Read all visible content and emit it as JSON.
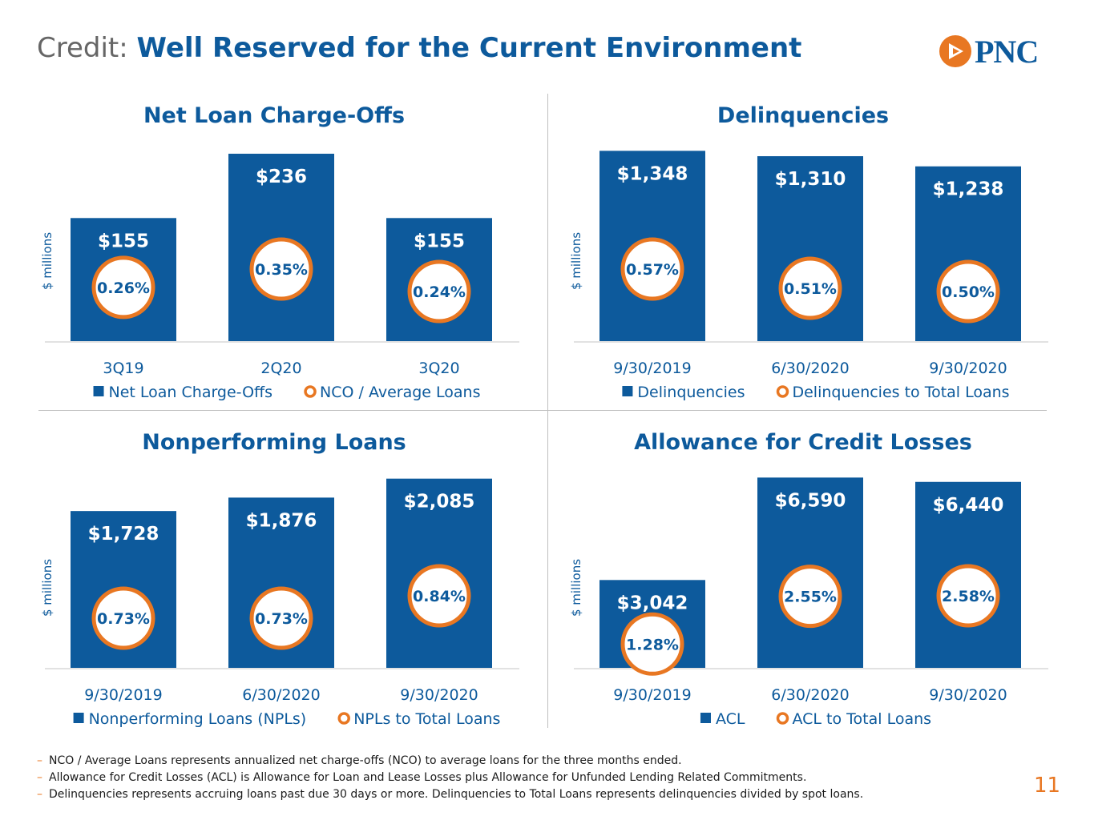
{
  "header": {
    "title_prefix": "Credit:",
    "title_main": "Well Reserved for the Current Environment",
    "logo_text": "PNC"
  },
  "colors": {
    "bar": "#0d5a9c",
    "ring": "#e87722",
    "axis_label": "#0d5a9c",
    "tick": "#0d5a9c"
  },
  "chart_data": [
    {
      "type": "bar",
      "title": "Net Loan Charge-Offs",
      "ylabel": "$ millions",
      "categories": [
        "3Q19",
        "2Q20",
        "3Q20"
      ],
      "values": [
        155,
        236,
        155
      ],
      "value_labels": [
        "$155",
        "$236",
        "$155"
      ],
      "ratio_values": [
        0.26,
        0.35,
        0.24
      ],
      "ratio_labels": [
        "0.26%",
        "0.35%",
        "0.24%"
      ],
      "ylim": [
        0,
        240
      ],
      "legend": {
        "bar": "Net Loan Charge-Offs",
        "ring": "NCO / Average Loans"
      }
    },
    {
      "type": "bar",
      "title": "Delinquencies",
      "ylabel": "$ millions",
      "categories": [
        "9/30/2019",
        "6/30/2020",
        "9/30/2020"
      ],
      "values": [
        1348,
        1310,
        1238
      ],
      "value_labels": [
        "$1,348",
        "$1,310",
        "$1,238"
      ],
      "ratio_values": [
        0.57,
        0.51,
        0.5
      ],
      "ratio_labels": [
        "0.57%",
        "0.51%",
        "0.50%"
      ],
      "ylim": [
        0,
        1350
      ],
      "legend": {
        "bar": "Delinquencies",
        "ring": "Delinquencies to Total Loans"
      }
    },
    {
      "type": "bar",
      "title": "Nonperforming Loans",
      "ylabel": "$ millions",
      "categories": [
        "9/30/2019",
        "6/30/2020",
        "9/30/2020"
      ],
      "values": [
        1728,
        1876,
        2085
      ],
      "value_labels": [
        "$1,728",
        "$1,876",
        "$2,085"
      ],
      "ratio_values": [
        0.73,
        0.73,
        0.84
      ],
      "ratio_labels": [
        "0.73%",
        "0.73%",
        "0.84%"
      ],
      "ylim": [
        0,
        2100
      ],
      "legend": {
        "bar": "Nonperforming Loans (NPLs)",
        "ring": "NPLs to Total Loans"
      }
    },
    {
      "type": "bar",
      "title": "Allowance for Credit Losses",
      "ylabel": "$ millions",
      "categories": [
        "9/30/2019",
        "6/30/2020",
        "9/30/2020"
      ],
      "values": [
        3042,
        6590,
        6440
      ],
      "value_labels": [
        "$3,042",
        "$6,590",
        "$6,440"
      ],
      "ratio_values": [
        1.28,
        2.55,
        2.58
      ],
      "ratio_labels": [
        "1.28%",
        "2.55%",
        "2.58%"
      ],
      "ylim": [
        0,
        6600
      ],
      "legend": {
        "bar": "ACL",
        "ring": "ACL to Total Loans"
      }
    }
  ],
  "footnotes": [
    "NCO / Average Loans represents annualized net charge-offs (NCO) to average loans for the three months ended.",
    "Allowance for Credit Losses (ACL) is Allowance for Loan and Lease Losses plus Allowance for Unfunded Lending Related Commitments.",
    "Delinquencies represents accruing loans past due 30 days or more. Delinquencies to Total Loans represents delinquencies divided by spot loans."
  ],
  "page_number": "11"
}
